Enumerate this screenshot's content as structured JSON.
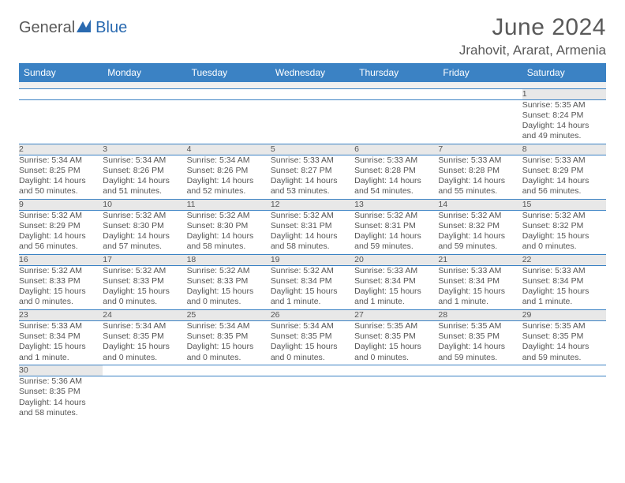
{
  "logo": {
    "general": "General",
    "blue": "Blue"
  },
  "title": "June 2024",
  "location": "Jrahovit, Ararat, Armenia",
  "colors": {
    "header_bg": "#3b82c4",
    "header_text": "#ffffff",
    "daynum_bg": "#e8e8e8",
    "border": "#3b82c4",
    "logo_blue": "#2a6ab0",
    "body_text": "#555555"
  },
  "weekdays": [
    "Sunday",
    "Monday",
    "Tuesday",
    "Wednesday",
    "Thursday",
    "Friday",
    "Saturday"
  ],
  "weeks": [
    [
      null,
      null,
      null,
      null,
      null,
      null,
      {
        "n": "1",
        "sr": "Sunrise: 5:35 AM",
        "ss": "Sunset: 8:24 PM",
        "d1": "Daylight: 14 hours",
        "d2": "and 49 minutes."
      }
    ],
    [
      {
        "n": "2",
        "sr": "Sunrise: 5:34 AM",
        "ss": "Sunset: 8:25 PM",
        "d1": "Daylight: 14 hours",
        "d2": "and 50 minutes."
      },
      {
        "n": "3",
        "sr": "Sunrise: 5:34 AM",
        "ss": "Sunset: 8:26 PM",
        "d1": "Daylight: 14 hours",
        "d2": "and 51 minutes."
      },
      {
        "n": "4",
        "sr": "Sunrise: 5:34 AM",
        "ss": "Sunset: 8:26 PM",
        "d1": "Daylight: 14 hours",
        "d2": "and 52 minutes."
      },
      {
        "n": "5",
        "sr": "Sunrise: 5:33 AM",
        "ss": "Sunset: 8:27 PM",
        "d1": "Daylight: 14 hours",
        "d2": "and 53 minutes."
      },
      {
        "n": "6",
        "sr": "Sunrise: 5:33 AM",
        "ss": "Sunset: 8:28 PM",
        "d1": "Daylight: 14 hours",
        "d2": "and 54 minutes."
      },
      {
        "n": "7",
        "sr": "Sunrise: 5:33 AM",
        "ss": "Sunset: 8:28 PM",
        "d1": "Daylight: 14 hours",
        "d2": "and 55 minutes."
      },
      {
        "n": "8",
        "sr": "Sunrise: 5:33 AM",
        "ss": "Sunset: 8:29 PM",
        "d1": "Daylight: 14 hours",
        "d2": "and 56 minutes."
      }
    ],
    [
      {
        "n": "9",
        "sr": "Sunrise: 5:32 AM",
        "ss": "Sunset: 8:29 PM",
        "d1": "Daylight: 14 hours",
        "d2": "and 56 minutes."
      },
      {
        "n": "10",
        "sr": "Sunrise: 5:32 AM",
        "ss": "Sunset: 8:30 PM",
        "d1": "Daylight: 14 hours",
        "d2": "and 57 minutes."
      },
      {
        "n": "11",
        "sr": "Sunrise: 5:32 AM",
        "ss": "Sunset: 8:30 PM",
        "d1": "Daylight: 14 hours",
        "d2": "and 58 minutes."
      },
      {
        "n": "12",
        "sr": "Sunrise: 5:32 AM",
        "ss": "Sunset: 8:31 PM",
        "d1": "Daylight: 14 hours",
        "d2": "and 58 minutes."
      },
      {
        "n": "13",
        "sr": "Sunrise: 5:32 AM",
        "ss": "Sunset: 8:31 PM",
        "d1": "Daylight: 14 hours",
        "d2": "and 59 minutes."
      },
      {
        "n": "14",
        "sr": "Sunrise: 5:32 AM",
        "ss": "Sunset: 8:32 PM",
        "d1": "Daylight: 14 hours",
        "d2": "and 59 minutes."
      },
      {
        "n": "15",
        "sr": "Sunrise: 5:32 AM",
        "ss": "Sunset: 8:32 PM",
        "d1": "Daylight: 15 hours",
        "d2": "and 0 minutes."
      }
    ],
    [
      {
        "n": "16",
        "sr": "Sunrise: 5:32 AM",
        "ss": "Sunset: 8:33 PM",
        "d1": "Daylight: 15 hours",
        "d2": "and 0 minutes."
      },
      {
        "n": "17",
        "sr": "Sunrise: 5:32 AM",
        "ss": "Sunset: 8:33 PM",
        "d1": "Daylight: 15 hours",
        "d2": "and 0 minutes."
      },
      {
        "n": "18",
        "sr": "Sunrise: 5:32 AM",
        "ss": "Sunset: 8:33 PM",
        "d1": "Daylight: 15 hours",
        "d2": "and 0 minutes."
      },
      {
        "n": "19",
        "sr": "Sunrise: 5:32 AM",
        "ss": "Sunset: 8:34 PM",
        "d1": "Daylight: 15 hours",
        "d2": "and 1 minute."
      },
      {
        "n": "20",
        "sr": "Sunrise: 5:33 AM",
        "ss": "Sunset: 8:34 PM",
        "d1": "Daylight: 15 hours",
        "d2": "and 1 minute."
      },
      {
        "n": "21",
        "sr": "Sunrise: 5:33 AM",
        "ss": "Sunset: 8:34 PM",
        "d1": "Daylight: 15 hours",
        "d2": "and 1 minute."
      },
      {
        "n": "22",
        "sr": "Sunrise: 5:33 AM",
        "ss": "Sunset: 8:34 PM",
        "d1": "Daylight: 15 hours",
        "d2": "and 1 minute."
      }
    ],
    [
      {
        "n": "23",
        "sr": "Sunrise: 5:33 AM",
        "ss": "Sunset: 8:34 PM",
        "d1": "Daylight: 15 hours",
        "d2": "and 1 minute."
      },
      {
        "n": "24",
        "sr": "Sunrise: 5:34 AM",
        "ss": "Sunset: 8:35 PM",
        "d1": "Daylight: 15 hours",
        "d2": "and 0 minutes."
      },
      {
        "n": "25",
        "sr": "Sunrise: 5:34 AM",
        "ss": "Sunset: 8:35 PM",
        "d1": "Daylight: 15 hours",
        "d2": "and 0 minutes."
      },
      {
        "n": "26",
        "sr": "Sunrise: 5:34 AM",
        "ss": "Sunset: 8:35 PM",
        "d1": "Daylight: 15 hours",
        "d2": "and 0 minutes."
      },
      {
        "n": "27",
        "sr": "Sunrise: 5:35 AM",
        "ss": "Sunset: 8:35 PM",
        "d1": "Daylight: 15 hours",
        "d2": "and 0 minutes."
      },
      {
        "n": "28",
        "sr": "Sunrise: 5:35 AM",
        "ss": "Sunset: 8:35 PM",
        "d1": "Daylight: 14 hours",
        "d2": "and 59 minutes."
      },
      {
        "n": "29",
        "sr": "Sunrise: 5:35 AM",
        "ss": "Sunset: 8:35 PM",
        "d1": "Daylight: 14 hours",
        "d2": "and 59 minutes."
      }
    ],
    [
      {
        "n": "30",
        "sr": "Sunrise: 5:36 AM",
        "ss": "Sunset: 8:35 PM",
        "d1": "Daylight: 14 hours",
        "d2": "and 58 minutes."
      },
      null,
      null,
      null,
      null,
      null,
      null
    ]
  ]
}
